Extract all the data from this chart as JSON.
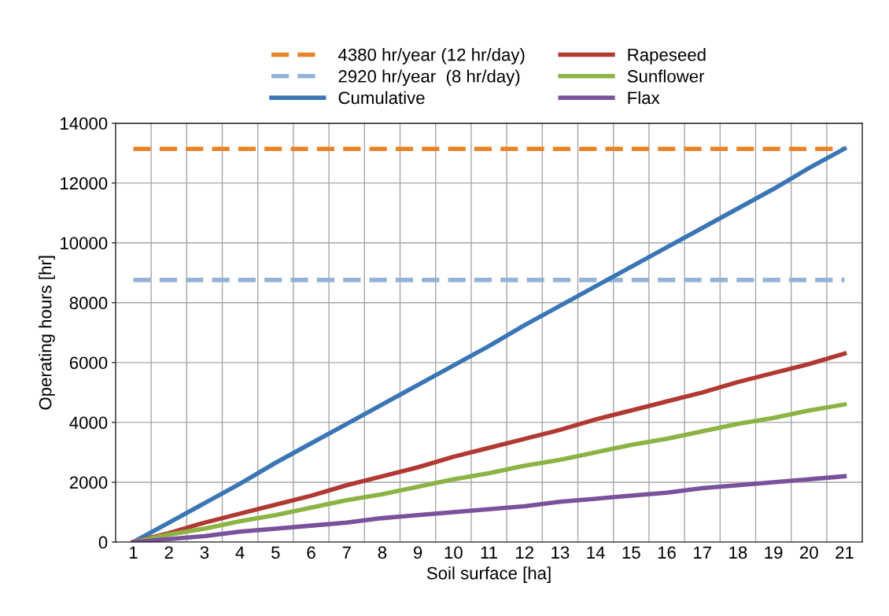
{
  "chart_data": {
    "type": "line",
    "xlabel": "Soil surface [ha]",
    "ylabel": "Operating hours [hr]",
    "categories": [
      "1",
      "2",
      "3",
      "4",
      "5",
      "6",
      "7",
      "8",
      "9",
      "10",
      "11",
      "12",
      "13",
      "14",
      "15",
      "16",
      "17",
      "18",
      "19",
      "20",
      "21"
    ],
    "series": [
      {
        "name": "4380 hr/year (12 hr/day)",
        "color": "#e8832a",
        "line_style": "dashed",
        "values": [
          13140,
          13140,
          13140,
          13140,
          13140,
          13140,
          13140,
          13140,
          13140,
          13140,
          13140,
          13140,
          13140,
          13140,
          13140,
          13140,
          13140,
          13140,
          13140,
          13140,
          13140
        ]
      },
      {
        "name": "2920 hr/year  (8 hr/day)",
        "color": "#95b3d7",
        "line_style": "dashed",
        "values": [
          8760,
          8760,
          8760,
          8760,
          8760,
          8760,
          8760,
          8760,
          8760,
          8760,
          8760,
          8760,
          8760,
          8760,
          8760,
          8760,
          8760,
          8760,
          8760,
          8760,
          8760
        ]
      },
      {
        "name": "Cumulative",
        "color": "#3a75b5",
        "values": [
          0,
          650,
          1300,
          1950,
          2650,
          3300,
          3950,
          4600,
          5250,
          5900,
          6550,
          7250,
          7900,
          8550,
          9200,
          9850,
          10500,
          11150,
          11800,
          12500,
          13150
        ]
      },
      {
        "name": "Rapeseed",
        "color": "#b03a32",
        "values": [
          0,
          300,
          650,
          950,
          1250,
          1550,
          1900,
          2200,
          2500,
          2850,
          3150,
          3450,
          3750,
          4100,
          4400,
          4700,
          5000,
          5350,
          5650,
          5950,
          6300
        ]
      },
      {
        "name": "Sunflower",
        "color": "#8db345",
        "values": [
          0,
          250,
          450,
          700,
          900,
          1150,
          1400,
          1600,
          1850,
          2100,
          2300,
          2550,
          2750,
          3000,
          3250,
          3450,
          3700,
          3950,
          4150,
          4400,
          4600
        ]
      },
      {
        "name": "Flax",
        "color": "#7a529b",
        "values": [
          0,
          100,
          200,
          350,
          450,
          550,
          650,
          800,
          900,
          1000,
          1100,
          1200,
          1350,
          1450,
          1550,
          1650,
          1800,
          1900,
          2000,
          2100,
          2200
        ]
      }
    ],
    "ylim": [
      0,
      14000
    ],
    "yticks": [
      0,
      2000,
      4000,
      6000,
      8000,
      10000,
      12000,
      14000
    ],
    "grid": true,
    "legend": "top",
    "line_style": "solid",
    "marker": "none"
  }
}
